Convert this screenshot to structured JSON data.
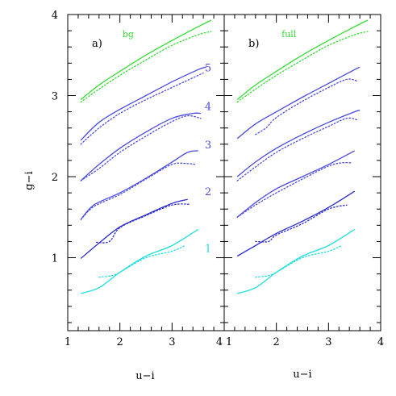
{
  "chart_data": {
    "type": "line",
    "xlabel": "u−i",
    "ylabel": "g−i",
    "xlim": [
      1,
      4
    ],
    "ylim": [
      0.1,
      4
    ],
    "colors": {
      "green": "#33dd33",
      "blue": "#4a4ae0",
      "darkblue": "#2a2ad0",
      "cyan": "#22dddd"
    },
    "panels": [
      {
        "label": "a)",
        "tag": "bg",
        "xticks": [
          "1",
          "2",
          "3",
          "4"
        ],
        "yticks": [
          "1",
          "2",
          "3",
          "4"
        ],
        "curves": [
          {
            "color_key": "green",
            "solid": [
              [
                1.25,
                2.95
              ],
              [
                1.6,
                3.13
              ],
              [
                2.0,
                3.3
              ],
              [
                2.5,
                3.5
              ],
              [
                3.0,
                3.68
              ],
              [
                3.5,
                3.85
              ],
              [
                3.75,
                3.93
              ]
            ],
            "dotted": [
              [
                1.25,
                2.92
              ],
              [
                1.6,
                3.08
              ],
              [
                2.0,
                3.25
              ],
              [
                2.5,
                3.44
              ],
              [
                3.0,
                3.62
              ],
              [
                3.5,
                3.75
              ],
              [
                3.75,
                3.79
              ]
            ]
          },
          {
            "color_key": "blue",
            "solid": [
              [
                1.25,
                2.45
              ],
              [
                1.6,
                2.67
              ],
              [
                2.0,
                2.83
              ],
              [
                2.5,
                3.0
              ],
              [
                3.0,
                3.17
              ],
              [
                3.5,
                3.32
              ],
              [
                3.65,
                3.35
              ]
            ],
            "dotted": [
              [
                1.25,
                2.4
              ],
              [
                1.6,
                2.6
              ],
              [
                2.0,
                2.78
              ],
              [
                2.5,
                2.95
              ],
              [
                3.0,
                3.1
              ],
              [
                3.5,
                3.25
              ],
              [
                3.6,
                3.28
              ]
            ]
          },
          {
            "color_key": "blue",
            "solid": [
              [
                1.25,
                1.95
              ],
              [
                1.6,
                2.15
              ],
              [
                2.0,
                2.35
              ],
              [
                2.5,
                2.55
              ],
              [
                3.0,
                2.72
              ],
              [
                3.4,
                2.78
              ],
              [
                3.55,
                2.78
              ]
            ],
            "dotted": [
              [
                1.25,
                1.95
              ],
              [
                1.6,
                2.1
              ],
              [
                2.0,
                2.3
              ],
              [
                2.5,
                2.5
              ],
              [
                3.0,
                2.68
              ],
              [
                3.3,
                2.75
              ],
              [
                3.55,
                2.72
              ]
            ]
          },
          {
            "color_key": "blue",
            "solid": [
              [
                1.25,
                1.47
              ],
              [
                1.5,
                1.65
              ],
              [
                2.0,
                1.8
              ],
              [
                2.5,
                1.98
              ],
              [
                3.0,
                2.18
              ],
              [
                3.3,
                2.3
              ],
              [
                3.5,
                2.32
              ]
            ],
            "dotted": [
              [
                1.25,
                1.47
              ],
              [
                1.5,
                1.63
              ],
              [
                2.0,
                1.78
              ],
              [
                2.5,
                1.97
              ],
              [
                3.0,
                2.15
              ],
              [
                3.3,
                2.16
              ],
              [
                3.45,
                2.15
              ]
            ]
          },
          {
            "color_key": "darkblue",
            "solid": [
              [
                1.25,
                0.99
              ],
              [
                1.6,
                1.18
              ],
              [
                2.0,
                1.38
              ],
              [
                2.5,
                1.53
              ],
              [
                3.0,
                1.67
              ],
              [
                3.3,
                1.72
              ]
            ],
            "dotted": [
              [
                1.55,
                1.19
              ],
              [
                1.8,
                1.2
              ],
              [
                2.0,
                1.37
              ],
              [
                2.5,
                1.52
              ],
              [
                3.0,
                1.65
              ],
              [
                3.35,
                1.66
              ]
            ]
          },
          {
            "color_key": "cyan",
            "solid": [
              [
                1.25,
                0.56
              ],
              [
                1.6,
                0.63
              ],
              [
                2.0,
                0.82
              ],
              [
                2.5,
                1.02
              ],
              [
                3.0,
                1.15
              ],
              [
                3.5,
                1.35
              ]
            ],
            "dotted": [
              [
                1.6,
                0.76
              ],
              [
                1.85,
                0.78
              ],
              [
                2.0,
                0.82
              ],
              [
                2.5,
                1.0
              ],
              [
                3.0,
                1.08
              ],
              [
                3.25,
                1.15
              ]
            ]
          }
        ]
      },
      {
        "label": "b)",
        "tag": "full",
        "xticks": [
          "1",
          "2",
          "3",
          "4"
        ],
        "yticks": [],
        "curves": [
          {
            "color_key": "green",
            "solid": [
              [
                1.25,
                2.95
              ],
              [
                1.6,
                3.13
              ],
              [
                2.0,
                3.3
              ],
              [
                2.5,
                3.5
              ],
              [
                3.0,
                3.68
              ],
              [
                3.5,
                3.85
              ],
              [
                3.75,
                3.93
              ]
            ],
            "dotted": [
              [
                1.25,
                2.92
              ],
              [
                1.6,
                3.08
              ],
              [
                2.0,
                3.25
              ],
              [
                2.5,
                3.44
              ],
              [
                3.0,
                3.62
              ],
              [
                3.5,
                3.75
              ],
              [
                3.75,
                3.79
              ]
            ]
          },
          {
            "color_key": "blue",
            "solid": [
              [
                1.25,
                2.47
              ],
              [
                1.6,
                2.65
              ],
              [
                2.0,
                2.8
              ],
              [
                2.5,
                2.98
              ],
              [
                3.0,
                3.15
              ],
              [
                3.5,
                3.32
              ],
              [
                3.6,
                3.35
              ]
            ],
            "dotted": [
              [
                1.6,
                2.52
              ],
              [
                1.8,
                2.6
              ],
              [
                2.0,
                2.73
              ],
              [
                2.5,
                2.93
              ],
              [
                3.0,
                3.1
              ],
              [
                3.35,
                3.2
              ],
              [
                3.55,
                3.18
              ]
            ]
          },
          {
            "color_key": "blue",
            "solid": [
              [
                1.25,
                2.0
              ],
              [
                1.6,
                2.18
              ],
              [
                2.0,
                2.35
              ],
              [
                2.5,
                2.52
              ],
              [
                3.0,
                2.67
              ],
              [
                3.5,
                2.8
              ],
              [
                3.6,
                2.82
              ]
            ],
            "dotted": [
              [
                1.25,
                1.95
              ],
              [
                1.6,
                2.12
              ],
              [
                2.0,
                2.3
              ],
              [
                2.5,
                2.47
              ],
              [
                3.0,
                2.62
              ],
              [
                3.35,
                2.72
              ],
              [
                3.55,
                2.7
              ]
            ]
          },
          {
            "color_key": "blue",
            "solid": [
              [
                1.25,
                1.5
              ],
              [
                1.6,
                1.68
              ],
              [
                2.0,
                1.85
              ],
              [
                2.5,
                2.0
              ],
              [
                3.0,
                2.15
              ],
              [
                3.5,
                2.32
              ]
            ],
            "dotted": [
              [
                1.25,
                1.5
              ],
              [
                1.6,
                1.65
              ],
              [
                2.0,
                1.8
              ],
              [
                2.5,
                1.97
              ],
              [
                3.0,
                2.13
              ],
              [
                3.25,
                2.17
              ],
              [
                3.45,
                2.17
              ]
            ]
          },
          {
            "color_key": "darkblue",
            "solid": [
              [
                1.25,
                1.02
              ],
              [
                1.6,
                1.15
              ],
              [
                2.0,
                1.3
              ],
              [
                2.5,
                1.45
              ],
              [
                3.0,
                1.62
              ],
              [
                3.5,
                1.82
              ]
            ],
            "dotted": [
              [
                1.6,
                1.2
              ],
              [
                1.85,
                1.2
              ],
              [
                2.0,
                1.28
              ],
              [
                2.5,
                1.42
              ],
              [
                3.0,
                1.6
              ],
              [
                3.35,
                1.65
              ]
            ]
          },
          {
            "color_key": "cyan",
            "solid": [
              [
                1.25,
                0.56
              ],
              [
                1.6,
                0.63
              ],
              [
                2.0,
                0.82
              ],
              [
                2.5,
                1.02
              ],
              [
                3.0,
                1.15
              ],
              [
                3.5,
                1.35
              ]
            ],
            "dotted": [
              [
                1.6,
                0.76
              ],
              [
                1.85,
                0.78
              ],
              [
                2.0,
                0.82
              ],
              [
                2.5,
                1.0
              ],
              [
                3.0,
                1.08
              ],
              [
                3.25,
                1.15
              ]
            ]
          }
        ]
      }
    ],
    "curve_numbers": [
      {
        "text": "5",
        "y": 3.35,
        "color_key": "blue"
      },
      {
        "text": "4",
        "y": 2.87,
        "color_key": "blue"
      },
      {
        "text": "3",
        "y": 2.4,
        "color_key": "blue"
      },
      {
        "text": "2",
        "y": 1.82,
        "color_key": "blue"
      },
      {
        "text": "1",
        "y": 1.12,
        "color_key": "cyan"
      }
    ]
  }
}
